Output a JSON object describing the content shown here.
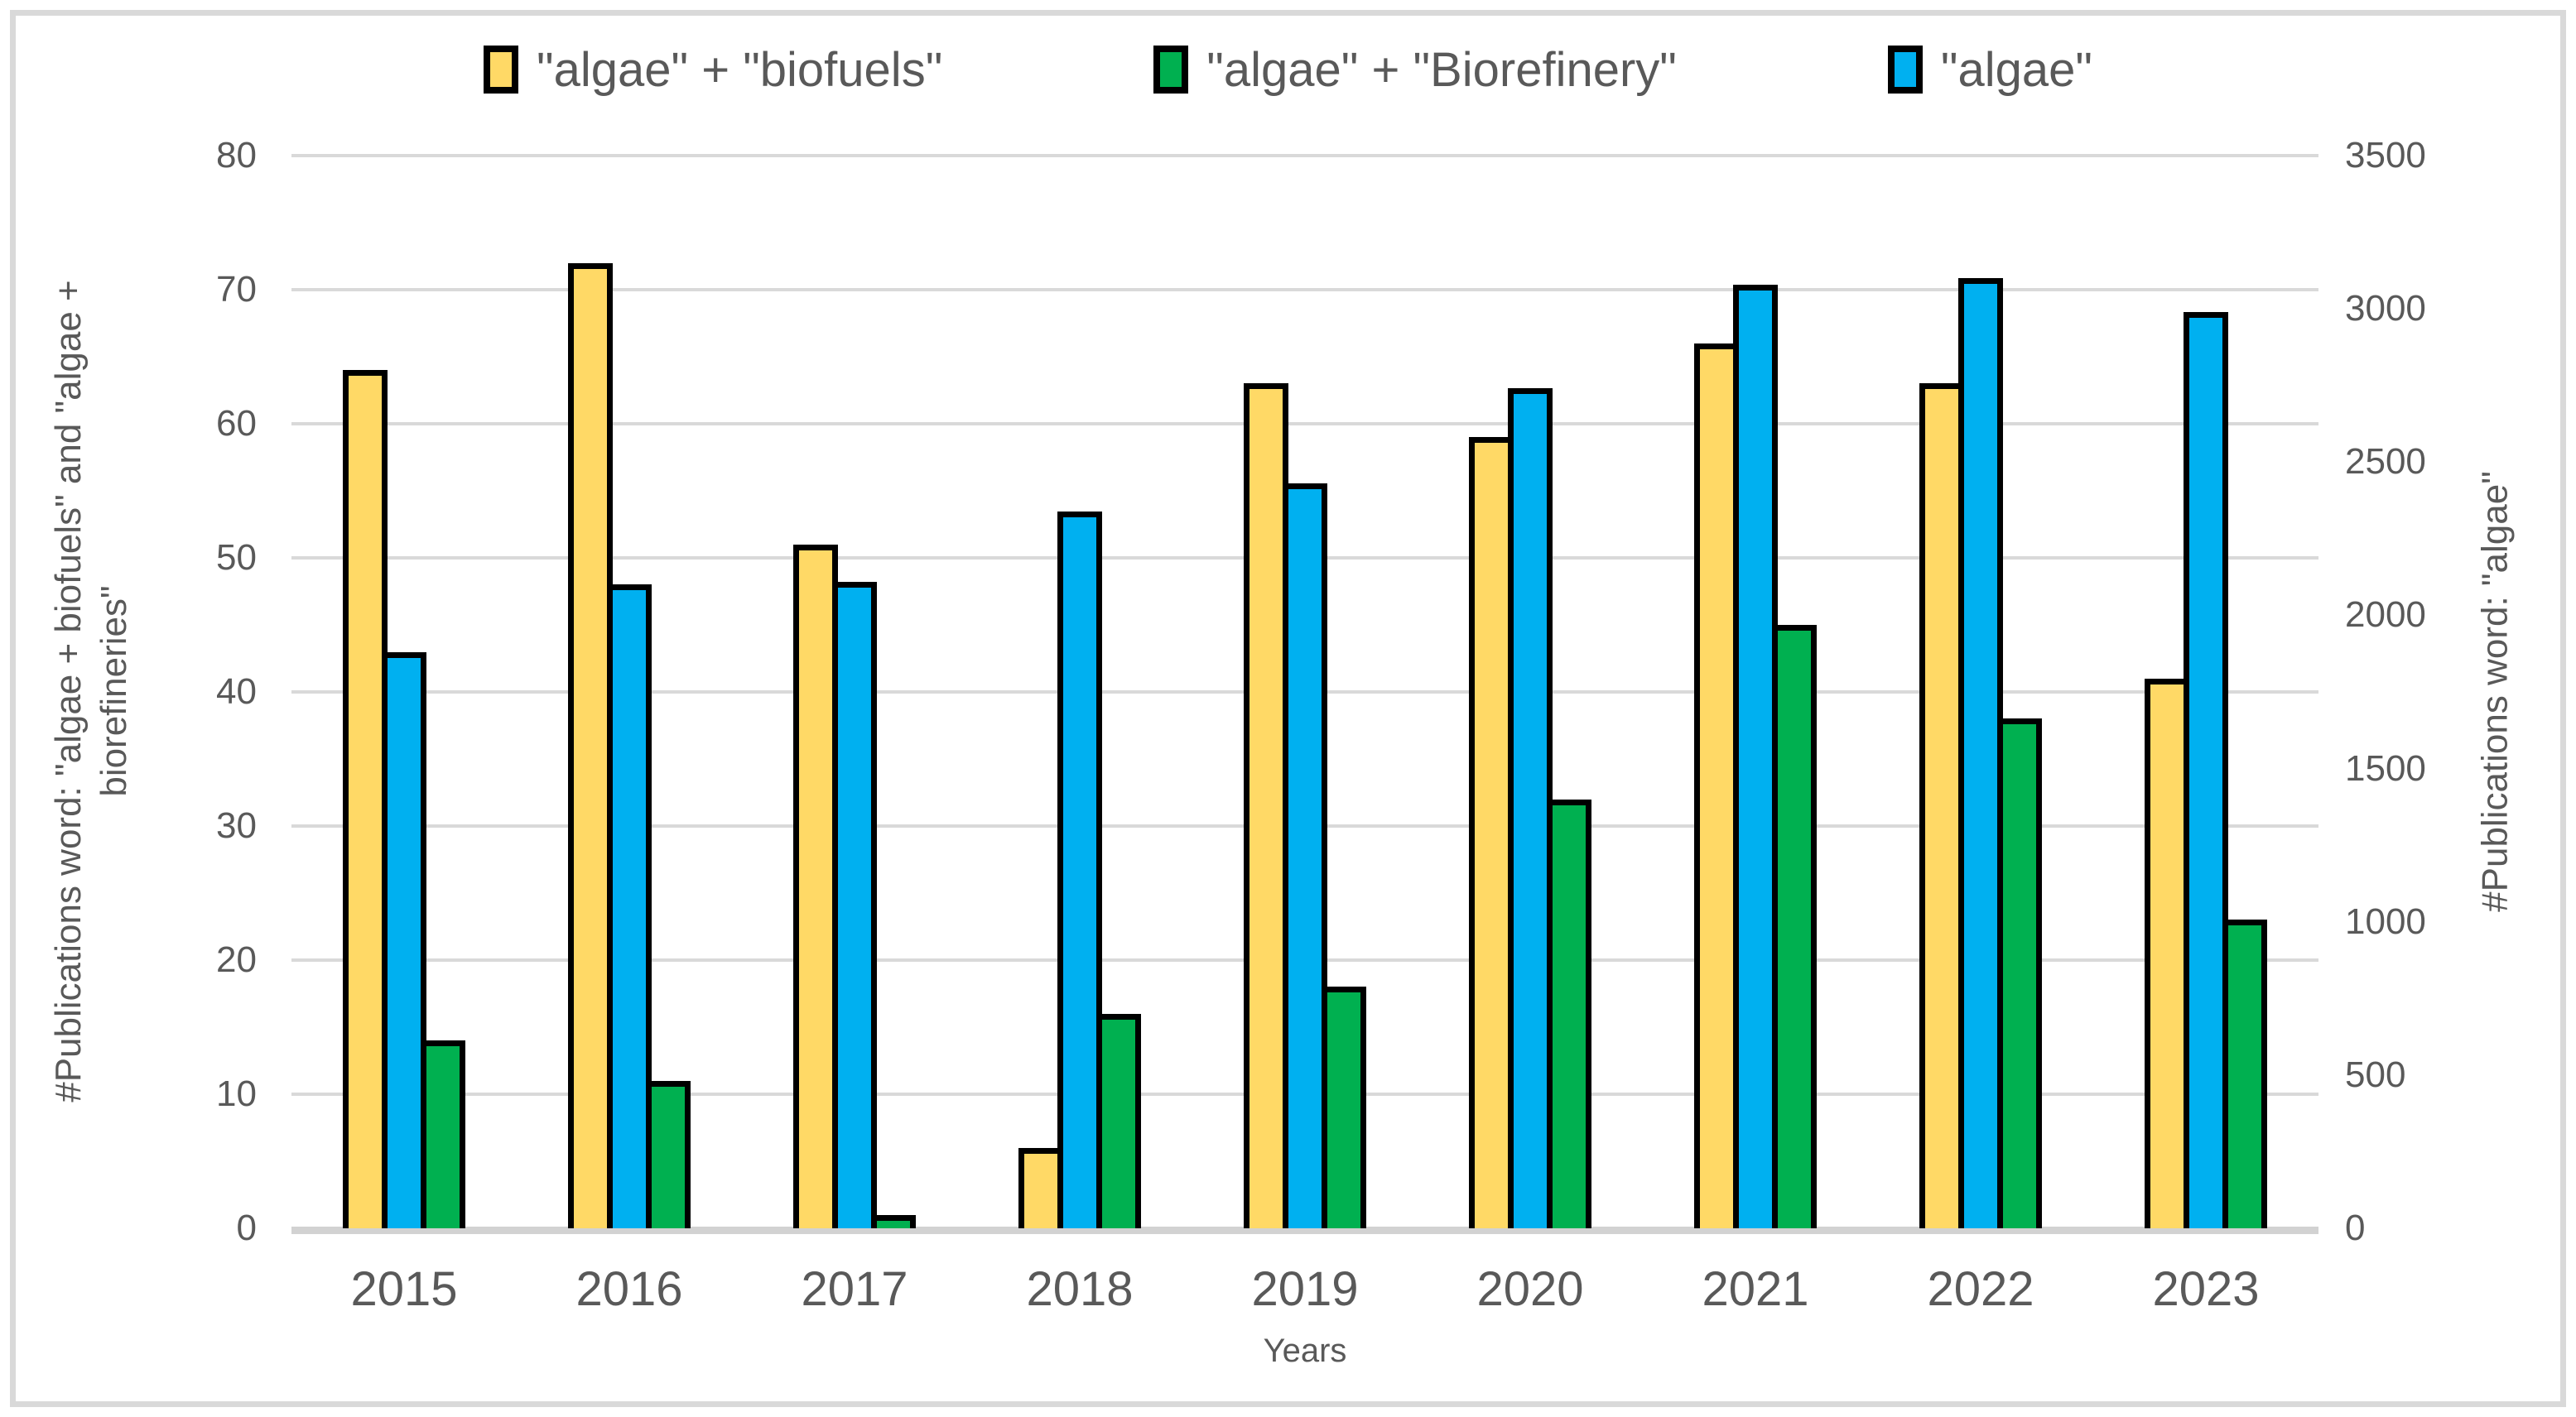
{
  "chart_data": {
    "type": "bar",
    "title": "",
    "categories": [
      "2015",
      "2016",
      "2017",
      "2018",
      "2019",
      "2020",
      "2021",
      "2022",
      "2023"
    ],
    "series": [
      {
        "name": "\"algae\" + \"biofuels\"",
        "axis": "left",
        "color": "#FFD966",
        "values": [
          64,
          72,
          51,
          6,
          63,
          59,
          66,
          63,
          41
        ]
      },
      {
        "name": "\"algae\"",
        "axis": "right",
        "color": "#00B0F0",
        "values": [
          1880,
          2100,
          2110,
          2340,
          2430,
          2740,
          3080,
          3100,
          2990
        ]
      },
      {
        "name": "\"algae\" + \"Biorefinery\"",
        "axis": "left",
        "color": "#00B050",
        "values": [
          14,
          11,
          1,
          16,
          18,
          32,
          45,
          38,
          23
        ]
      }
    ],
    "legend_order": [
      0,
      2,
      1
    ],
    "legend_position": "top",
    "grid": "horizontal",
    "bar_border_color": "#000000",
    "gridline_color": "#d9d9d9",
    "text_color": "#595959",
    "xlabel": "Years",
    "left_axis": {
      "label_lines": "#Publications word: \"algae + biofuels\" and \"algae +\nbiorefineries\"",
      "min": 0,
      "max": 80,
      "step": 10,
      "ticks": [
        "0",
        "10",
        "20",
        "30",
        "40",
        "50",
        "60",
        "70",
        "80"
      ]
    },
    "right_axis": {
      "label_lines": "#Publications word: \"algae\"",
      "min": 0,
      "max": 3500,
      "step": 500,
      "ticks": [
        "0",
        "500",
        "1000",
        "1500",
        "2000",
        "2500",
        "3000",
        "3500"
      ]
    }
  }
}
